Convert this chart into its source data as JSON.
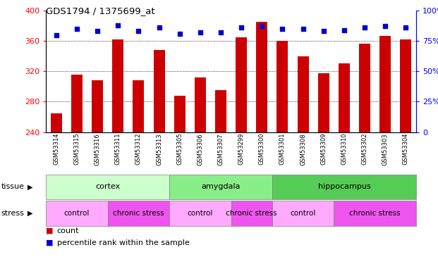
{
  "title": "GDS1794 / 1375699_at",
  "samples": [
    "GSM53314",
    "GSM53315",
    "GSM53316",
    "GSM53311",
    "GSM53312",
    "GSM53313",
    "GSM53305",
    "GSM53306",
    "GSM53307",
    "GSM53299",
    "GSM53300",
    "GSM53301",
    "GSM53308",
    "GSM53309",
    "GSM53310",
    "GSM53302",
    "GSM53303",
    "GSM53304"
  ],
  "counts": [
    265,
    316,
    308,
    362,
    308,
    348,
    288,
    312,
    295,
    365,
    385,
    360,
    340,
    317,
    330,
    356,
    367,
    362
  ],
  "percentiles": [
    80,
    85,
    83,
    88,
    83,
    86,
    81,
    82,
    82,
    86,
    87,
    85,
    85,
    83,
    84,
    86,
    87,
    86
  ],
  "bar_color": "#cc0000",
  "dot_color": "#0000cc",
  "ylim_left": [
    240,
    400
  ],
  "ylim_right": [
    0,
    100
  ],
  "yticks_left": [
    240,
    280,
    320,
    360,
    400
  ],
  "yticks_right": [
    0,
    25,
    50,
    75,
    100
  ],
  "tissue_groups": [
    {
      "label": "cortex",
      "start": 0,
      "end": 6,
      "color": "#ccffcc"
    },
    {
      "label": "amygdala",
      "start": 6,
      "end": 11,
      "color": "#88ee88"
    },
    {
      "label": "hippocampus",
      "start": 11,
      "end": 18,
      "color": "#55cc55"
    }
  ],
  "stress_groups": [
    {
      "label": "control",
      "start": 0,
      "end": 3,
      "color": "#ffaaff"
    },
    {
      "label": "chronic stress",
      "start": 3,
      "end": 6,
      "color": "#ee55ee"
    },
    {
      "label": "control",
      "start": 6,
      "end": 9,
      "color": "#ffaaff"
    },
    {
      "label": "chronic stress",
      "start": 9,
      "end": 11,
      "color": "#ee55ee"
    },
    {
      "label": "control",
      "start": 11,
      "end": 14,
      "color": "#ffaaff"
    },
    {
      "label": "chronic stress",
      "start": 14,
      "end": 18,
      "color": "#ee55ee"
    }
  ],
  "legend_count_color": "#cc0000",
  "legend_pct_color": "#0000cc"
}
